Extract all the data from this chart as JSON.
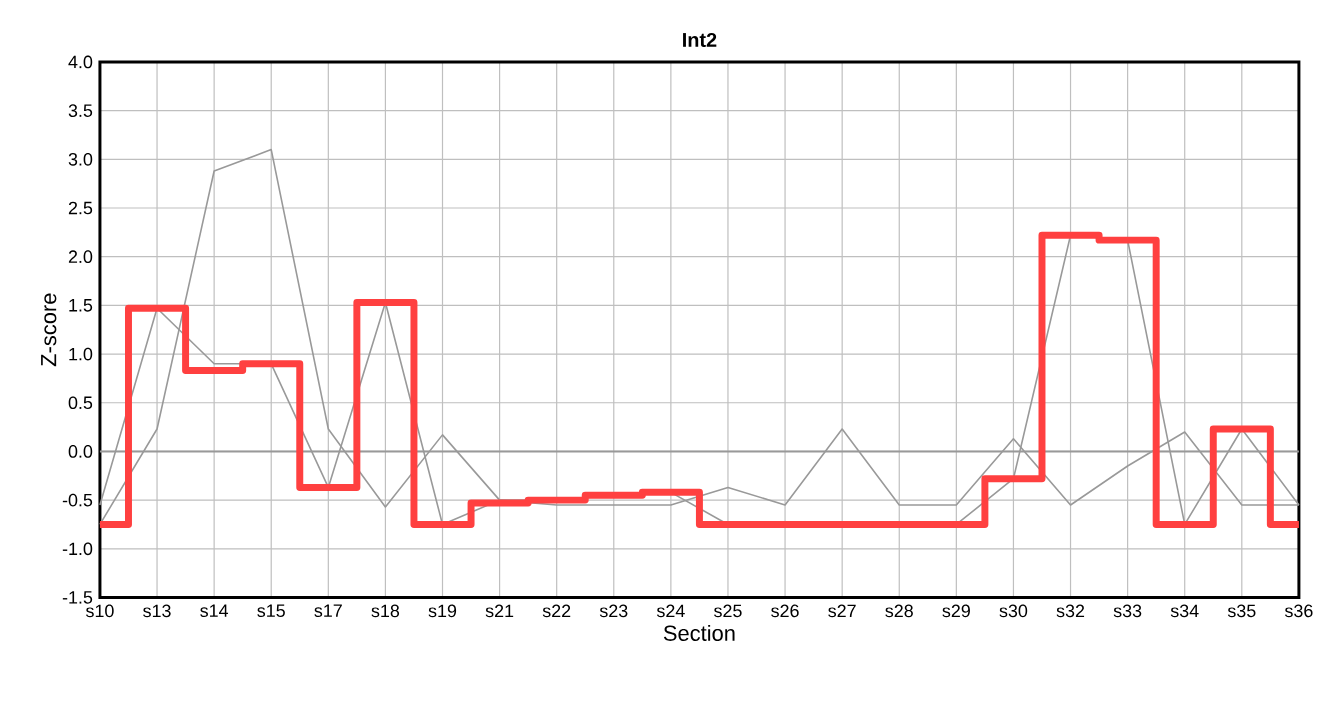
{
  "chart_data": {
    "type": "line",
    "title": "Int2",
    "xlabel": "Section",
    "ylabel": "Z-score",
    "categories": [
      "s10",
      "s13",
      "s14",
      "s15",
      "s17",
      "s18",
      "s19",
      "s21",
      "s22",
      "s23",
      "s24",
      "s25",
      "s26",
      "s27",
      "s28",
      "s29",
      "s30",
      "s32",
      "s33",
      "s34",
      "s35",
      "s36"
    ],
    "series": [
      {
        "color": "#999999",
        "values": [
          -0.75,
          0.23,
          2.88,
          3.1,
          0.23,
          -0.57,
          0.17,
          -0.5,
          -0.55,
          -0.55,
          -0.55,
          -0.37,
          -0.55,
          0.23,
          -0.55,
          -0.55,
          0.13,
          -0.55,
          -0.15,
          0.2,
          -0.55,
          -0.55
        ]
      },
      {
        "color": "#999999",
        "values": [
          -0.55,
          1.47,
          0.9,
          0.9,
          -0.37,
          1.53,
          -0.75,
          -0.5,
          -0.5,
          -0.45,
          -0.42,
          -0.75,
          null,
          null,
          -0.75,
          -0.75,
          -0.28,
          2.22,
          2.17,
          -0.75,
          0.23,
          -0.55
        ]
      },
      {
        "type": "step",
        "color": "#ff4040",
        "values": [
          -0.75,
          1.47,
          0.83,
          0.9,
          -0.37,
          1.53,
          -0.75,
          -0.53,
          -0.5,
          -0.45,
          -0.42,
          -0.75,
          -0.75,
          -0.75,
          -0.75,
          -0.75,
          -0.28,
          2.22,
          2.17,
          -0.75,
          0.23,
          -0.75
        ]
      }
    ],
    "ylim": [
      -1.5,
      4.0
    ],
    "yticks": [
      {
        "value": -1.5,
        "label": "-1.5"
      },
      {
        "value": -1.0,
        "label": "-1.0"
      },
      {
        "value": -0.5,
        "label": "-0.5"
      },
      {
        "value": 0,
        "label": "0.0"
      },
      {
        "value": 0.5,
        "label": "0.5"
      },
      {
        "value": 1.0,
        "label": "1.0"
      },
      {
        "value": 1.5,
        "label": "1.5"
      },
      {
        "value": 2.0,
        "label": "2.0"
      },
      {
        "value": 2.5,
        "label": "2.5"
      },
      {
        "value": 3.0,
        "label": "3.0"
      },
      {
        "value": 3.5,
        "label": "3.5"
      },
      {
        "value": 4.0,
        "label": "4.0"
      }
    ],
    "ref_lines": [
      {
        "axis": "y",
        "value": 0,
        "color": "#999999"
      }
    ],
    "grid": true,
    "marker": "none",
    "line_style": "solid"
  }
}
